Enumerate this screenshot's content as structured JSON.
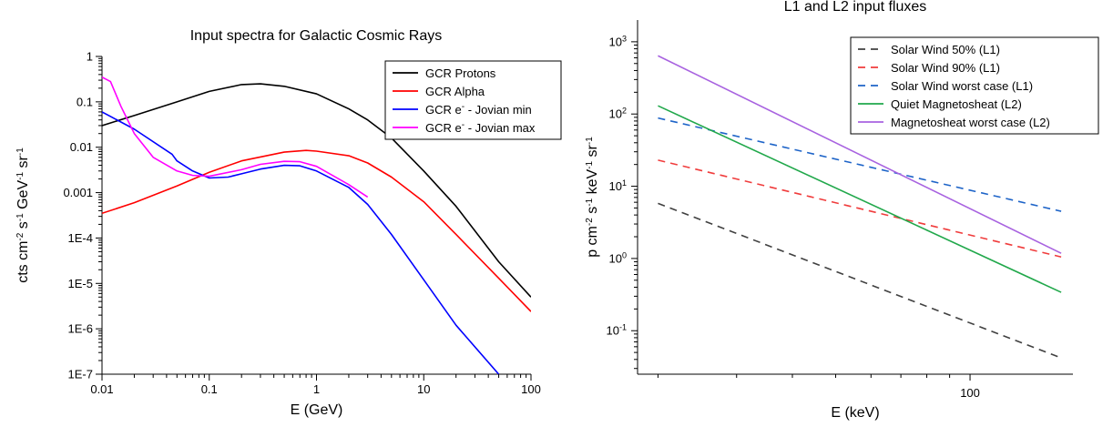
{
  "chart_data": [
    {
      "type": "line",
      "title": "Input spectra for Galactic Cosmic Rays",
      "xlabel": "E (GeV)",
      "ylabel_parts": [
        "cts cm",
        "-2",
        " s",
        "-1",
        " GeV",
        "-1",
        " sr",
        "-1"
      ],
      "xscale": "log",
      "yscale": "log",
      "xlim": [
        0.01,
        100
      ],
      "ylim": [
        1e-07,
        1
      ],
      "xticks": [
        {
          "value": 0.01,
          "label": "0.01"
        },
        {
          "value": 0.1,
          "label": "0.1"
        },
        {
          "value": 1,
          "label": "1"
        },
        {
          "value": 10,
          "label": "10"
        },
        {
          "value": 100,
          "label": "100"
        }
      ],
      "yticks": [
        {
          "value": 1,
          "label": "1"
        },
        {
          "value": 0.1,
          "label": "0.1"
        },
        {
          "value": 0.01,
          "label": "0.01"
        },
        {
          "value": 0.001,
          "label": "0.001"
        },
        {
          "value": 0.0001,
          "label": "1E-4"
        },
        {
          "value": 1e-05,
          "label": "1E-5"
        },
        {
          "value": 1e-06,
          "label": "1E-6"
        },
        {
          "value": 1e-07,
          "label": "1E-7"
        }
      ],
      "grid": false,
      "legend_position": "top-right",
      "series": [
        {
          "name": "GCR Protons",
          "legend_parts": [
            "GCR Protons"
          ],
          "color": "#000000",
          "dash": "solid",
          "x": [
            0.01,
            0.02,
            0.05,
            0.1,
            0.2,
            0.3,
            0.5,
            1,
            2,
            3,
            5,
            10,
            20,
            50,
            100
          ],
          "y": [
            0.03,
            0.05,
            0.1,
            0.17,
            0.24,
            0.25,
            0.22,
            0.15,
            0.07,
            0.04,
            0.016,
            0.003,
            0.0005,
            3e-05,
            5e-06
          ]
        },
        {
          "name": "GCR Alpha",
          "legend_parts": [
            "GCR Alpha"
          ],
          "color": "#ff0000",
          "dash": "solid",
          "x": [
            0.01,
            0.02,
            0.05,
            0.1,
            0.2,
            0.5,
            0.8,
            1,
            2,
            3,
            5,
            10,
            20,
            50,
            100
          ],
          "y": [
            0.00035,
            0.0006,
            0.0014,
            0.0028,
            0.005,
            0.0078,
            0.0085,
            0.0082,
            0.0065,
            0.0045,
            0.0022,
            0.00063,
            0.00012,
            1.3e-05,
            2.4e-06
          ]
        },
        {
          "name": "GCR e- - Jovian min",
          "legend_parts": [
            "GCR e",
            "-",
            " - Jovian min"
          ],
          "color": "#0000ff",
          "dash": "solid",
          "x": [
            0.01,
            0.02,
            0.045,
            0.05,
            0.07,
            0.1,
            0.15,
            0.2,
            0.3,
            0.5,
            0.7,
            1,
            2,
            3,
            5,
            10,
            20,
            50
          ],
          "y": [
            0.06,
            0.025,
            0.007,
            0.005,
            0.003,
            0.0021,
            0.0022,
            0.0026,
            0.0033,
            0.004,
            0.0039,
            0.003,
            0.0013,
            0.00055,
            0.00012,
            1.2e-05,
            1.2e-06,
            1e-07
          ]
        },
        {
          "name": "GCR e- - Jovian max",
          "legend_parts": [
            "GCR e",
            "-",
            " - Jovian max"
          ],
          "color": "#ff00ff",
          "dash": "solid",
          "x": [
            0.01,
            0.012,
            0.015,
            0.02,
            0.03,
            0.05,
            0.07,
            0.1,
            0.2,
            0.3,
            0.5,
            0.7,
            1,
            2,
            3
          ],
          "y": [
            0.35,
            0.28,
            0.08,
            0.02,
            0.006,
            0.003,
            0.0024,
            0.0023,
            0.0032,
            0.0042,
            0.0049,
            0.0048,
            0.0038,
            0.0015,
            0.0008
          ]
        }
      ]
    },
    {
      "type": "line",
      "title": "L1 and L2 input fluxes",
      "xlabel": "E (keV)",
      "ylabel_parts": [
        "p cm",
        "-2",
        " s",
        "-1",
        " keV",
        "-1",
        " sr",
        "-1"
      ],
      "xscale": "log",
      "yscale": "log",
      "xlim": [
        18,
        170
      ],
      "ylim": [
        0.025,
        2000
      ],
      "xticks": [
        {
          "value": 100,
          "label": "100"
        }
      ],
      "yticks": [
        {
          "value": 1000,
          "base": "10",
          "exp": "3"
        },
        {
          "value": 100,
          "base": "10",
          "exp": "2"
        },
        {
          "value": 10,
          "base": "10",
          "exp": "1"
        },
        {
          "value": 1,
          "base": "10",
          "exp": "0"
        },
        {
          "value": 0.1,
          "base": "10",
          "exp": "-1"
        }
      ],
      "grid": false,
      "legend_position": "top-right",
      "series": [
        {
          "name": "Solar Wind 50% (L1)",
          "legend_parts": [
            "Solar Wind 50% (L1)"
          ],
          "color": "#404040",
          "dash": "dashed",
          "x": [
            20,
            160
          ],
          "y": [
            5.8,
            0.042
          ]
        },
        {
          "name": "Solar Wind 90% (L1)",
          "legend_parts": [
            "Solar Wind 90% (L1)"
          ],
          "color": "#f03c3c",
          "dash": "dashed",
          "x": [
            20,
            160
          ],
          "y": [
            23,
            1.05
          ]
        },
        {
          "name": "Solar Wind worst case (L1)",
          "legend_parts": [
            "Solar Wind worst case (L1)"
          ],
          "color": "#1e64c8",
          "dash": "dashed",
          "x": [
            20,
            160
          ],
          "y": [
            88,
            4.5
          ]
        },
        {
          "name": "Quiet Magnetosheat (L2)",
          "legend_parts": [
            "Quiet Magnetosheat (L2)"
          ],
          "color": "#21a84b",
          "dash": "solid",
          "x": [
            20,
            160
          ],
          "y": [
            130,
            0.34
          ]
        },
        {
          "name": "Magnetosheat worst case (L2)",
          "legend_parts": [
            "Magnetosheat worst case (L2)"
          ],
          "color": "#a862e0",
          "dash": "solid",
          "x": [
            20,
            160
          ],
          "y": [
            640,
            1.18
          ]
        }
      ]
    }
  ]
}
